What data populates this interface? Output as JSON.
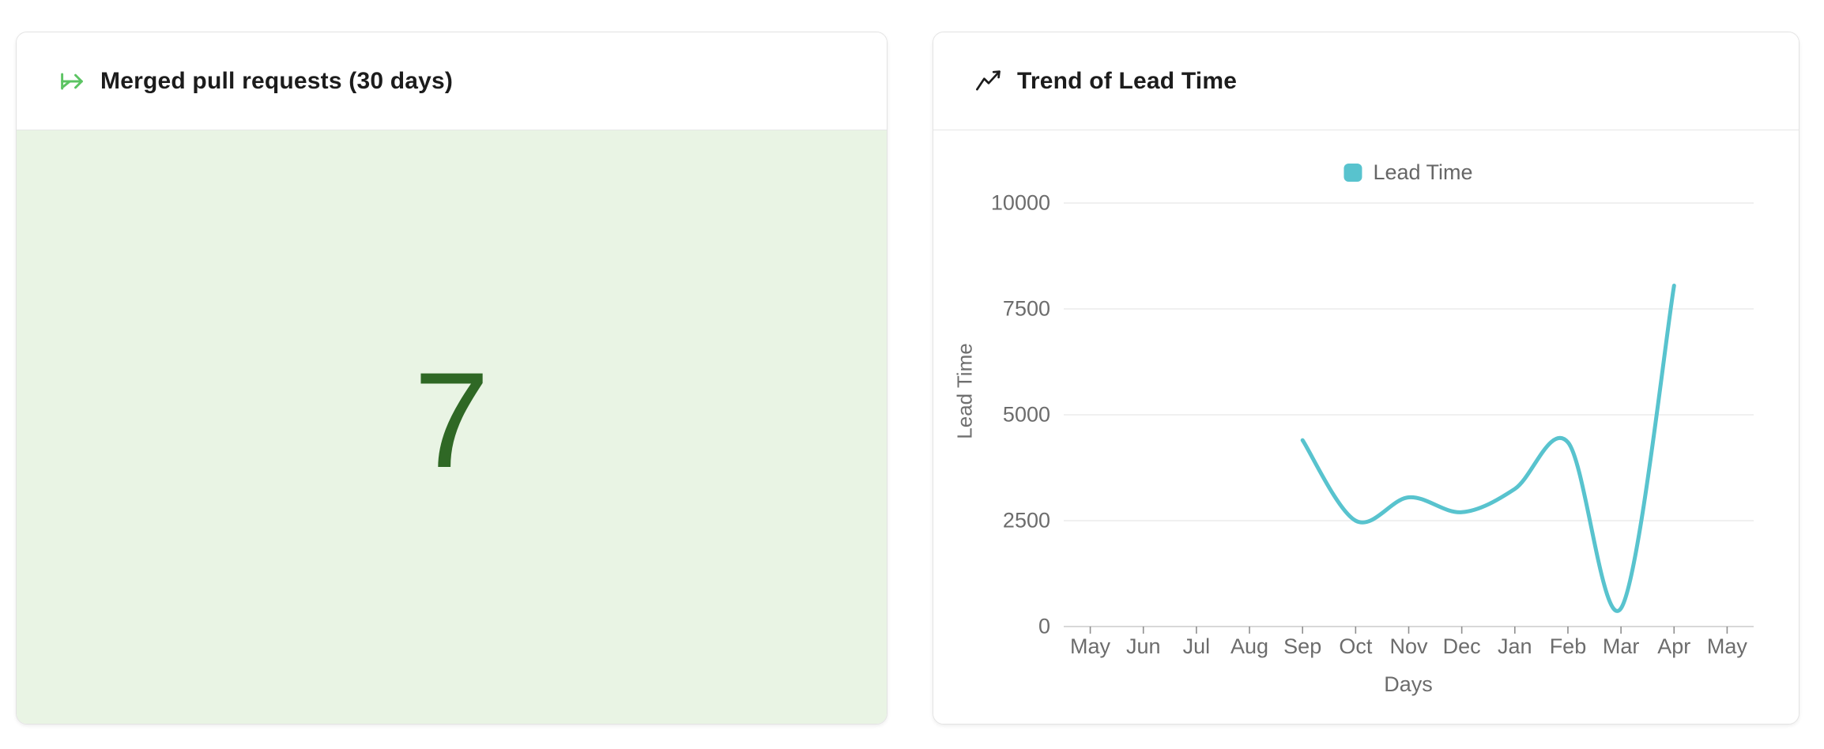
{
  "left_card": {
    "title": "Merged pull requests (30 days)",
    "value": "7",
    "accent_green": "#5cc463",
    "value_color": "#2f6825",
    "value_background": "#e9f4e4"
  },
  "right_card": {
    "title": "Trend of Lead Time"
  },
  "chart_data": {
    "type": "line",
    "title": "Trend of Lead Time",
    "categories": [
      "May",
      "Jun",
      "Jul",
      "Aug",
      "Sep",
      "Oct",
      "Nov",
      "Dec",
      "Jan",
      "Feb",
      "Mar",
      "Apr",
      "May"
    ],
    "series": [
      {
        "name": "Lead Time",
        "values": [
          null,
          null,
          null,
          null,
          4400,
          2500,
          3050,
          2700,
          3250,
          4350,
          430,
          8050,
          null
        ],
        "color": "#58c3ce",
        "smooth": true
      }
    ],
    "xlabel": "Days",
    "ylabel": "Lead Time",
    "yticks": [
      0,
      2500,
      5000,
      7500,
      10000
    ],
    "ylim": [
      0,
      10000
    ],
    "legend": {
      "position": "top",
      "items": [
        "Lead Time"
      ]
    },
    "grid": true,
    "gridline_color": "#ececec",
    "axisline_color": "#d8d8d8",
    "tick_color": "#8f8f8f"
  }
}
